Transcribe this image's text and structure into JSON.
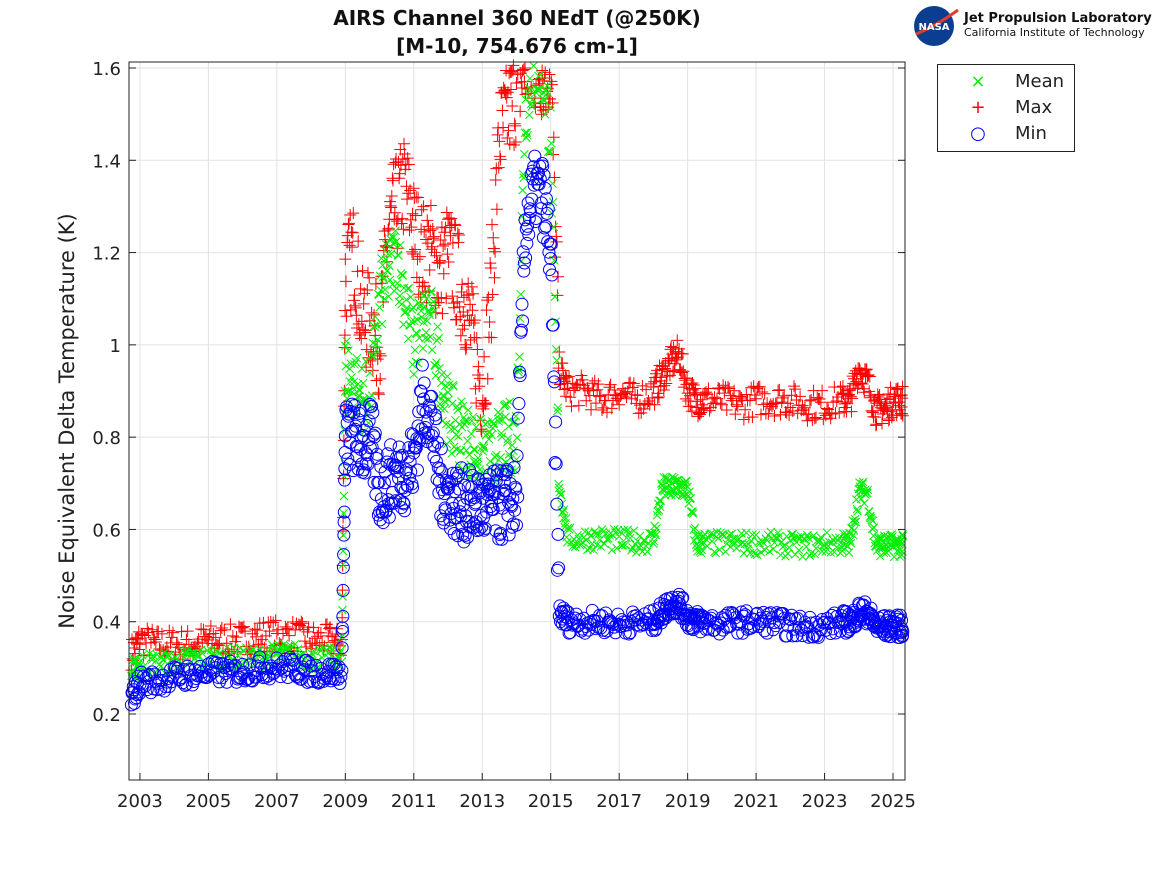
{
  "chart_data": {
    "type": "scatter",
    "title": [
      "AIRS Channel 360 NEdT (@250K)",
      "[M-10, 754.676 cm-1]"
    ],
    "xlabel": "",
    "ylabel": "Noise Equivalent Delta Temperature (K)",
    "xlim": [
      2002.68,
      2025.35
    ],
    "ylim": [
      0.057,
      1.613
    ],
    "xticks": [
      2003,
      2005,
      2007,
      2009,
      2011,
      2013,
      2015,
      2017,
      2019,
      2021,
      2023,
      2025
    ],
    "yticks": [
      0.2,
      0.4,
      0.6,
      0.8,
      1,
      1.2,
      1.4,
      1.6
    ],
    "ytick_labels": [
      "0.2",
      "0.4",
      "0.6",
      "0.8",
      "1",
      "1.2",
      "1.4",
      "1.6"
    ],
    "grid": true,
    "legend_position": "outside-top-right",
    "x": [
      2002.75,
      2003,
      2003.5,
      2004,
      2004.5,
      2005,
      2005.5,
      2006,
      2006.5,
      2007,
      2007.5,
      2008,
      2008.5,
      2008.9,
      2009,
      2009.25,
      2009.5,
      2009.75,
      2010,
      2010.25,
      2010.5,
      2010.75,
      2011,
      2011.25,
      2011.5,
      2011.75,
      2012,
      2012.25,
      2012.5,
      2012.75,
      2013,
      2013.25,
      2013.5,
      2013.75,
      2014,
      2014.25,
      2014.5,
      2014.75,
      2015,
      2015.25,
      2015.5,
      2016,
      2016.5,
      2017,
      2017.5,
      2018,
      2018.25,
      2018.5,
      2018.75,
      2019,
      2019.25,
      2019.5,
      2020,
      2020.5,
      2021,
      2021.5,
      2022,
      2022.5,
      2023,
      2023.5,
      2023.75,
      2024,
      2024.25,
      2024.5,
      2024.75,
      2025,
      2025.25
    ],
    "series": [
      {
        "name": "Mean",
        "marker": "x",
        "color": "#00ee00",
        "values": [
          0.29,
          0.31,
          0.31,
          0.31,
          0.32,
          0.32,
          0.32,
          0.32,
          0.32,
          0.33,
          0.33,
          0.32,
          0.32,
          0.32,
          0.95,
          0.92,
          0.88,
          0.9,
          1.1,
          1.15,
          1.2,
          1.1,
          1.0,
          1.05,
          1.05,
          0.95,
          0.85,
          0.82,
          0.8,
          0.78,
          0.76,
          0.76,
          0.78,
          0.8,
          0.8,
          1.5,
          1.6,
          1.6,
          1.45,
          0.7,
          0.58,
          0.58,
          0.58,
          0.575,
          0.575,
          0.575,
          0.69,
          0.69,
          0.69,
          0.69,
          0.57,
          0.57,
          0.57,
          0.57,
          0.57,
          0.57,
          0.565,
          0.565,
          0.57,
          0.57,
          0.57,
          0.68,
          0.68,
          0.565,
          0.565,
          0.565,
          0.565
        ]
      },
      {
        "name": "Max",
        "marker": "+",
        "color": "#ff0000",
        "values": [
          0.33,
          0.36,
          0.35,
          0.35,
          0.35,
          0.36,
          0.36,
          0.36,
          0.37,
          0.37,
          0.37,
          0.36,
          0.36,
          0.35,
          1.15,
          1.2,
          1.05,
          1.05,
          1.0,
          1.25,
          1.3,
          1.35,
          1.25,
          1.2,
          1.2,
          1.15,
          1.2,
          1.15,
          1.1,
          1.0,
          0.9,
          1.1,
          1.45,
          1.5,
          1.55,
          1.6,
          1.6,
          1.6,
          1.6,
          0.95,
          0.9,
          0.9,
          0.88,
          0.9,
          0.88,
          0.9,
          0.93,
          0.96,
          0.98,
          0.9,
          0.88,
          0.88,
          0.88,
          0.87,
          0.88,
          0.88,
          0.88,
          0.87,
          0.87,
          0.88,
          0.88,
          0.95,
          0.92,
          0.86,
          0.86,
          0.88,
          0.88
        ]
      },
      {
        "name": "Min",
        "marker": "o",
        "color": "#0000ff",
        "values": [
          0.23,
          0.27,
          0.27,
          0.28,
          0.285,
          0.29,
          0.29,
          0.29,
          0.3,
          0.3,
          0.3,
          0.29,
          0.29,
          0.29,
          0.8,
          0.8,
          0.78,
          0.8,
          0.68,
          0.7,
          0.72,
          0.72,
          0.75,
          0.88,
          0.85,
          0.7,
          0.68,
          0.66,
          0.65,
          0.65,
          0.65,
          0.65,
          0.65,
          0.66,
          0.66,
          1.25,
          1.33,
          1.33,
          1.2,
          0.42,
          0.4,
          0.4,
          0.4,
          0.395,
          0.4,
          0.4,
          0.42,
          0.44,
          0.44,
          0.41,
          0.4,
          0.4,
          0.395,
          0.4,
          0.4,
          0.4,
          0.39,
          0.39,
          0.39,
          0.4,
          0.4,
          0.42,
          0.42,
          0.39,
          0.39,
          0.39,
          0.39
        ]
      }
    ]
  },
  "logo": {
    "line1": "Jet Propulsion Laboratory",
    "line2": "California Institute of Technology",
    "badge": "NASA"
  }
}
